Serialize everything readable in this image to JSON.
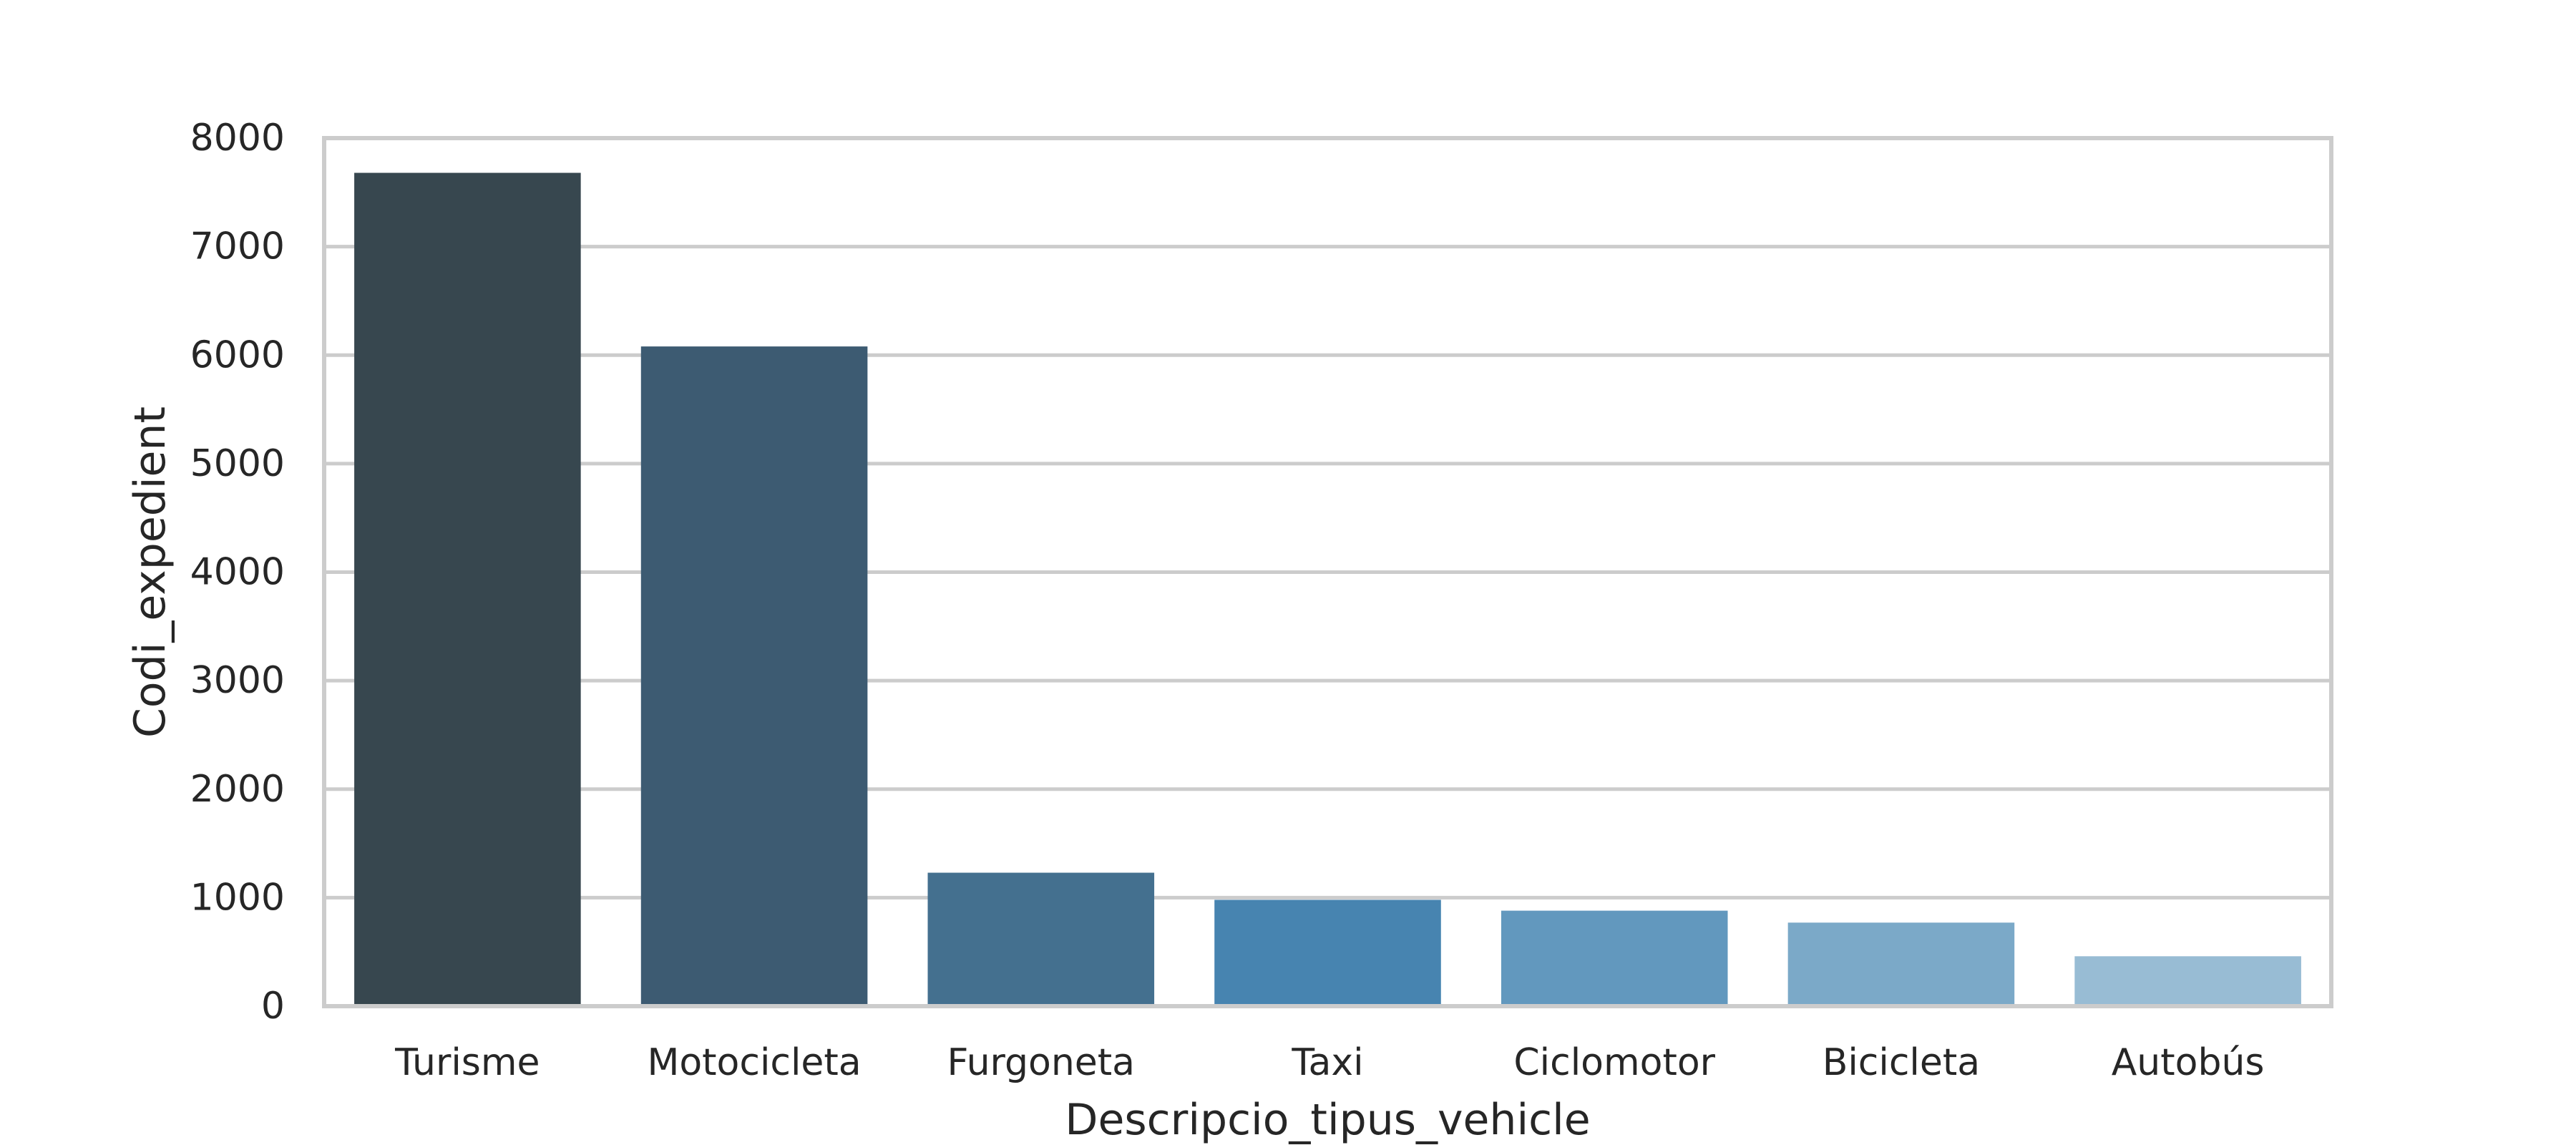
{
  "chart_data": {
    "type": "bar",
    "categories": [
      "Turisme",
      "Motocicleta",
      "Furgoneta",
      "Taxi",
      "Ciclomotor",
      "Bicicleta",
      "Autobús"
    ],
    "values": [
      7680,
      6080,
      1230,
      980,
      880,
      770,
      460
    ],
    "colors": [
      "#37474f",
      "#3d5b72",
      "#44708f",
      "#4784b0",
      "#6298be",
      "#7ba9c8",
      "#98bcd4"
    ],
    "xlabel": "Descripcio_tipus_vehicle",
    "ylabel": "Codi_expedient",
    "ylim": [
      0,
      8000
    ],
    "yticks": [
      0,
      1000,
      2000,
      3000,
      4000,
      5000,
      6000,
      7000,
      8000
    ],
    "grid": true,
    "grid_axis": "y",
    "legend": "none"
  }
}
